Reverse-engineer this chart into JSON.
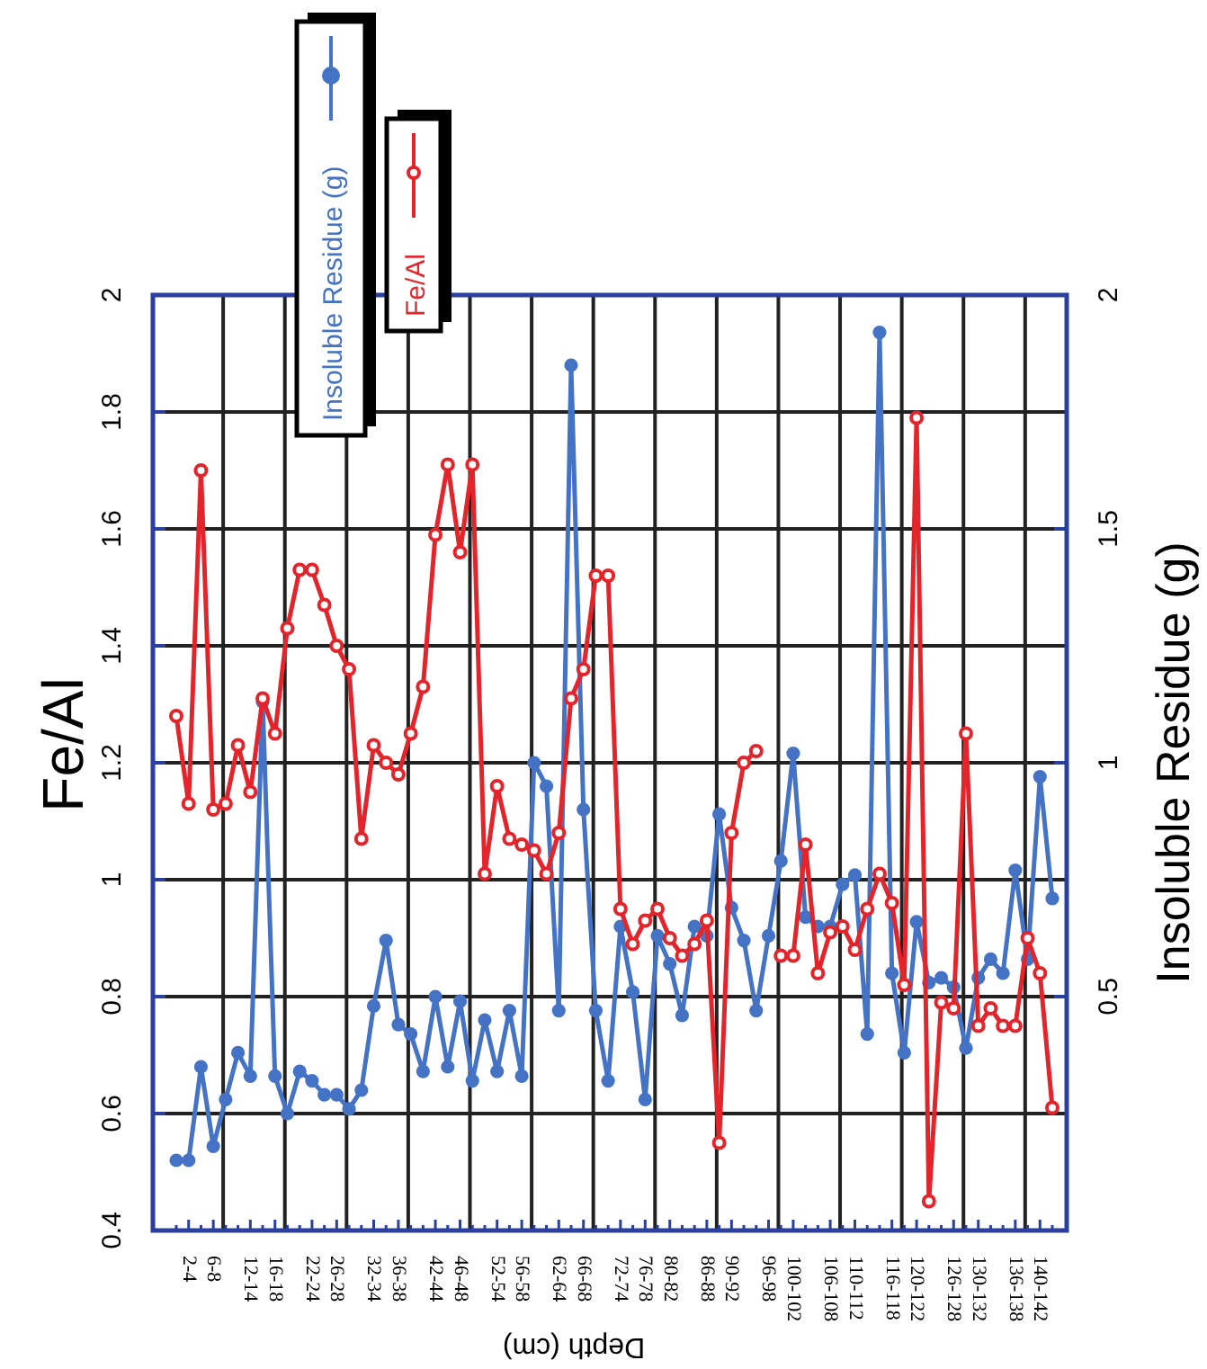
{
  "chart_data": {
    "type": "line",
    "xlabel": "Depth (cm)",
    "ylabel": "Fe/Al",
    "y2label": "Insoluble Residue (g)",
    "categories": [
      null,
      "2-4",
      null,
      "6-8",
      null,
      null,
      "12-14",
      null,
      "16-18",
      null,
      null,
      "22-24",
      null,
      "26-28",
      null,
      null,
      "32-34",
      null,
      "36-38",
      null,
      null,
      "42-44",
      null,
      "46-48",
      null,
      null,
      "52-54",
      null,
      "56-58",
      null,
      null,
      "62-64",
      null,
      "66-68",
      null,
      null,
      "72-74",
      null,
      "76-78",
      null,
      "80-82",
      null,
      null,
      "86-88",
      null,
      "90-92",
      null,
      null,
      "96-98",
      null,
      "100-102",
      null,
      null,
      "106-108",
      null,
      "110-112",
      null,
      null,
      "116-118",
      null,
      "120-122",
      null,
      null,
      "126-128",
      null,
      "130-132",
      null,
      null,
      "136-138",
      null,
      "140-142",
      null
    ],
    "series": [
      {
        "name": "Insoluble Residue (g)",
        "color": "#4472c4",
        "axis": "y2",
        "values": [
          0.15,
          0.15,
          0.35,
          0.18,
          0.28,
          0.38,
          0.33,
          1.13,
          0.33,
          0.25,
          0.34,
          0.32,
          0.29,
          0.29,
          0.26,
          0.3,
          0.48,
          0.62,
          0.44,
          0.42,
          0.34,
          0.5,
          0.35,
          0.49,
          0.32,
          0.45,
          0.34,
          0.47,
          0.33,
          1.0,
          0.95,
          0.47,
          1.85,
          0.9,
          0.47,
          0.32,
          0.65,
          0.51,
          0.28,
          0.63,
          0.57,
          0.46,
          0.65,
          0.63,
          0.89,
          0.69,
          0.62,
          0.47,
          0.63,
          0.79,
          1.02,
          0.67,
          0.65,
          0.65,
          0.74,
          0.76,
          0.42,
          1.92,
          0.55,
          0.38,
          0.66,
          0.53,
          0.54,
          0.52,
          0.39,
          0.54,
          0.58,
          0.55,
          0.77,
          0.58,
          0.97,
          0.71
        ]
      },
      {
        "name": "Fe/Al",
        "color": "#e3242b",
        "values": [
          1.28,
          1.13,
          1.7,
          1.12,
          1.13,
          1.23,
          1.15,
          1.31,
          1.25,
          1.43,
          1.53,
          1.53,
          1.47,
          1.4,
          1.36,
          1.07,
          1.23,
          1.2,
          1.18,
          1.25,
          1.33,
          1.59,
          1.71,
          1.56,
          1.71,
          1.01,
          1.16,
          1.07,
          1.06,
          1.05,
          1.01,
          1.08,
          1.31,
          1.36,
          1.52,
          1.52,
          0.95,
          0.89,
          0.93,
          0.95,
          0.9,
          0.87,
          0.89,
          0.93,
          0.55,
          1.08,
          1.2,
          1.22,
          null,
          0.87,
          0.87,
          1.06,
          0.84,
          0.91,
          0.92,
          0.88,
          0.95,
          1.01,
          0.96,
          0.82,
          1.79,
          0.45,
          0.79,
          0.78,
          1.25,
          0.75,
          0.78,
          0.75,
          0.75,
          0.9,
          0.84,
          0.61
        ]
      }
    ],
    "ylim": [
      0.4,
      2
    ],
    "yticks": [
      0.4,
      0.6,
      0.8,
      1,
      1.2,
      1.4,
      1.6,
      1.8,
      2
    ],
    "y2lim": [
      0,
      2
    ],
    "y2ticks": [
      0.5,
      1,
      1.5,
      2
    ],
    "grid": true,
    "legend": "top",
    "marker": "circle",
    "line_style": "solid"
  }
}
